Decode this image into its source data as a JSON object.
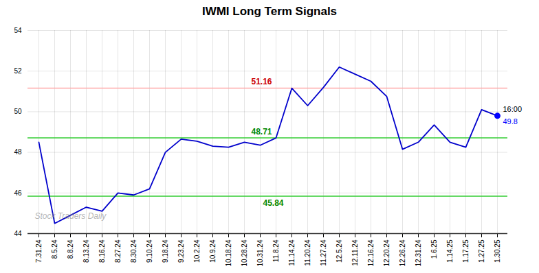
{
  "chart_data": {
    "type": "line",
    "title": "IWMI Long Term Signals",
    "categories": [
      "7.31.24",
      "8.5.24",
      "8.8.24",
      "8.13.24",
      "8.16.24",
      "8.27.24",
      "8.30.24",
      "9.10.24",
      "9.18.24",
      "9.23.24",
      "10.2.24",
      "10.9.24",
      "10.18.24",
      "10.28.24",
      "10.31.24",
      "11.8.24",
      "11.14.24",
      "11.20.24",
      "11.27.24",
      "12.5.24",
      "12.11.24",
      "12.16.24",
      "12.20.24",
      "12.26.24",
      "12.31.24",
      "1.6.25",
      "1.14.25",
      "1.17.25",
      "1.27.25",
      "1.30.25"
    ],
    "values": [
      48.5,
      44.5,
      44.9,
      45.3,
      45.1,
      46.0,
      45.9,
      46.2,
      48.0,
      48.65,
      48.55,
      48.3,
      48.25,
      48.5,
      48.35,
      48.71,
      51.16,
      50.3,
      51.2,
      52.2,
      51.85,
      51.5,
      50.75,
      48.15,
      48.5,
      49.35,
      48.5,
      48.25,
      50.1,
      49.8
    ],
    "color": "#0000cc",
    "hlines": [
      {
        "value": 51.16,
        "color": "#ffaaaa"
      },
      {
        "value": 48.71,
        "color": "#33cc33"
      },
      {
        "value": 45.84,
        "color": "#33cc33"
      }
    ],
    "annotations": [
      {
        "text": "51.16",
        "color": "#cc0000",
        "x": "11.8.24",
        "y": 51.16
      },
      {
        "text": "48.71",
        "color": "#008800",
        "x": "11.8.24",
        "y": 48.71
      },
      {
        "text": "45.84",
        "color": "#008800",
        "x": "10.31.24",
        "y": 45.84
      }
    ],
    "end_point": {
      "label": "16:00",
      "value": 49.8,
      "color": "#0000ff"
    },
    "watermark": "Stock Traders Daily",
    "ylim": [
      44,
      54
    ],
    "yticks": [
      44,
      46,
      48,
      50,
      52,
      54
    ],
    "grid": true
  }
}
